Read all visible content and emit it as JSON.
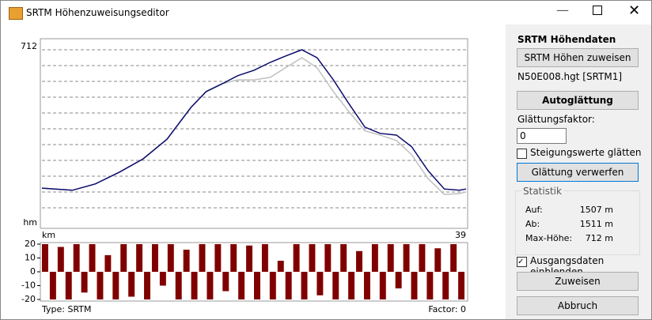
{
  "window": {
    "title": "SRTM Höhenzuweisungseditor"
  },
  "chart_data": [
    {
      "type": "line",
      "y_label": "hm",
      "x_label": "km",
      "xlim": [
        0,
        39
      ],
      "xticks": [
        39
      ],
      "ylim": [
        300,
        712
      ],
      "yticks": [
        712
      ],
      "grid": true,
      "x": [
        0,
        2.8,
        4.9,
        7.1,
        9.3,
        11.5,
        13.7,
        15.1,
        16.6,
        18,
        19.5,
        21,
        22.4,
        23.9,
        25.3,
        26.8,
        28.2,
        29.7,
        31.1,
        32.6,
        34,
        35.5,
        37,
        38.4,
        39
      ],
      "series": [
        {
          "color": "#c0c0c0",
          "values": [
            381,
            376,
            391,
            419,
            451,
            498,
            574,
            612,
            631,
            640,
            640,
            646,
            669,
            693,
            669,
            612,
            565,
            518,
            508,
            495,
            461,
            404,
            366,
            368,
            372
          ]
        },
        {
          "color": "#0a0a6e",
          "values": [
            381,
            376,
            391,
            419,
            451,
            498,
            574,
            612,
            631,
            650,
            663,
            682,
            697,
            712,
            693,
            640,
            584,
            527,
            512,
            508,
            480,
            423,
            379,
            376,
            379
          ]
        }
      ]
    },
    {
      "type": "bar",
      "ylim": [
        -20,
        20
      ],
      "yticks": [
        20,
        10,
        0,
        -10,
        -20
      ],
      "color": "#800000",
      "values": [
        20,
        -20,
        18,
        -20,
        20,
        -15,
        20,
        -20,
        12,
        -20,
        20,
        -18,
        20,
        -20,
        20,
        -10,
        20,
        -20,
        16,
        -20,
        20,
        -20,
        20,
        -14,
        20,
        -20,
        19,
        -20,
        20,
        -20,
        8,
        -20,
        20,
        -20,
        20,
        -17,
        20,
        -20,
        20,
        -20,
        15,
        -20,
        20,
        -20,
        20,
        -12,
        20,
        -20,
        20,
        -20,
        17,
        -20,
        20,
        -20
      ],
      "type_label": "Type: SRTM",
      "factor_label": "Factor: 0"
    }
  ],
  "panel": {
    "heading": "SRTM Höhendaten",
    "assign_srtm": "SRTM Höhen zuweisen",
    "file": "N50E008.hgt [SRTM1]",
    "autosmooth": "Autoglättung",
    "factor_label": "Glättungsfaktor:",
    "factor_value": "0",
    "smooth_slopes": "Steigungswerte glätten",
    "discard": "Glättung verwerfen",
    "stats_title": "Statistik",
    "stats": [
      [
        "Auf:",
        "1507 m"
      ],
      [
        "Ab:",
        "1511 m"
      ],
      [
        "Max-Höhe:",
        "712 m"
      ]
    ],
    "show_source": "Ausgangsdaten einblenden",
    "assign": "Zuweisen",
    "cancel": "Abbruch"
  }
}
